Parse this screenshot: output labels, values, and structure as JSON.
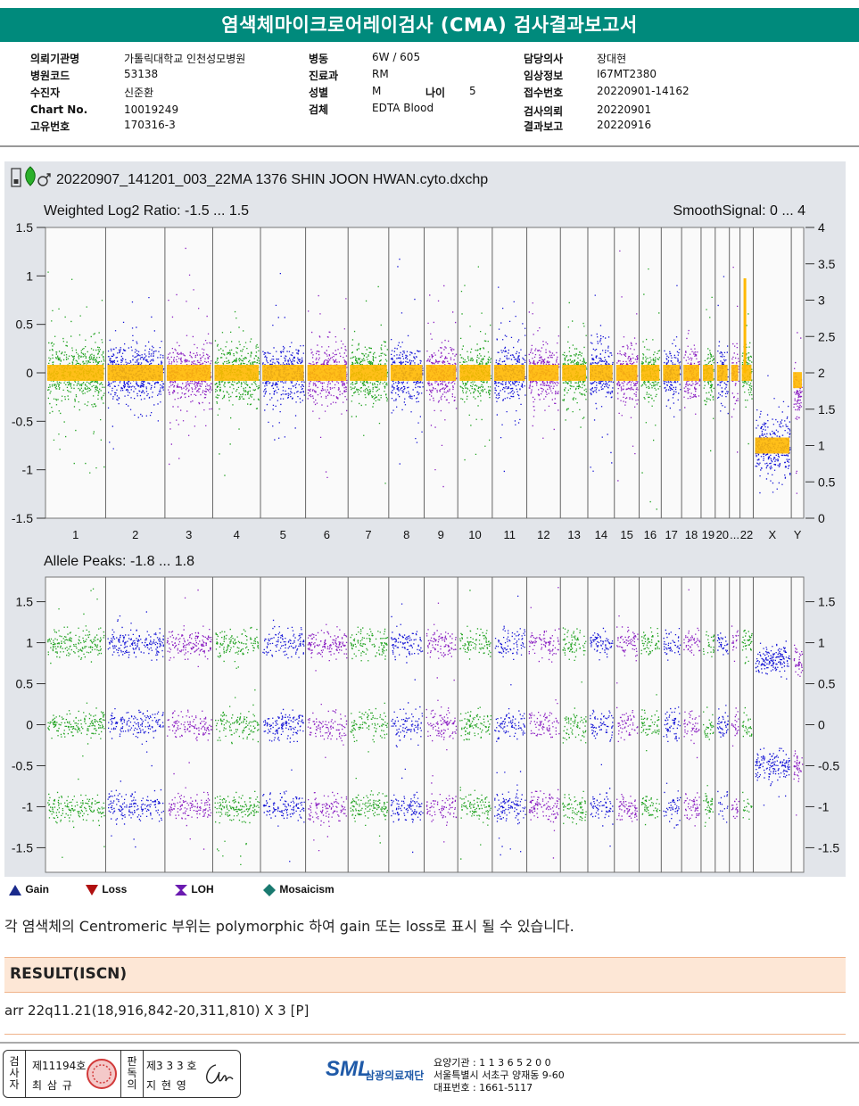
{
  "header": {
    "title": "염색체마이크로어레이검사 (CMA) 검사결과보고서"
  },
  "patient_info": {
    "col1": [
      {
        "label": "의뢰기관명",
        "value": "가톨릭대학교 인천성모병원"
      },
      {
        "label": "병원코드",
        "value": "53138"
      },
      {
        "label": "수진자",
        "value": "신준환"
      },
      {
        "label": "Chart No.",
        "value": "10019249"
      },
      {
        "label": "고유번호",
        "value": "170316-3"
      }
    ],
    "col2": [
      {
        "label": "병동",
        "value": "6W / 605"
      },
      {
        "label": "진료과",
        "value": "RM"
      },
      {
        "label": "성별",
        "value": "M"
      },
      {
        "label": "검체",
        "value": "EDTA Blood"
      }
    ],
    "age": {
      "label": "나이",
      "value": "5"
    },
    "col3": [
      {
        "label": "담당의사",
        "value": "장대현"
      },
      {
        "label": "임상정보",
        "value": "I67MT2380"
      },
      {
        "label": "접수번호",
        "value": "20220901-14162"
      },
      {
        "label": "검사의뢰",
        "value": "20220901"
      },
      {
        "label": "결과보고",
        "value": "20220916"
      }
    ]
  },
  "chart_data": {
    "type": "scatter",
    "filename": "20220907_141201_003_22MA 1376 SHIN JOON HWAN.cyto.dxchp",
    "chromosomes": [
      "1",
      "2",
      "3",
      "4",
      "5",
      "6",
      "7",
      "8",
      "9",
      "10",
      "11",
      "12",
      "13",
      "14",
      "15",
      "16",
      "17",
      "18",
      "19",
      "20",
      "...",
      "22",
      "X",
      "Y"
    ],
    "series_colors": [
      "#1fa21f",
      "#1515d6",
      "#8a1ec2"
    ],
    "smooth_color": "#ffb800",
    "top_panel": {
      "title": "Weighted Log2 Ratio: -1.5 ... 1.5",
      "right_title": "SmoothSignal: 0 ... 4",
      "ylim": [
        -1.5,
        1.5
      ],
      "yticks": [
        "1.5",
        "1",
        "0.5",
        "0",
        "-0.5",
        "-1",
        "-1.5"
      ],
      "yticks_right": [
        "4",
        "3.5",
        "3",
        "2.5",
        "2",
        "1.5",
        "1",
        "0.5",
        "0"
      ],
      "autosome_log2": 0,
      "x_log2": -0.75,
      "y_log2": -0.2
    },
    "bottom_panel": {
      "title": "Allele Peaks: -1.8 ... 1.8",
      "ylim": [
        -1.8,
        1.8
      ],
      "yticks": [
        "1.5",
        "1",
        "0.5",
        "0",
        "-0.5",
        "-1",
        "-1.5"
      ],
      "yticks_right": [
        "1.5",
        "1",
        "0.5",
        "0",
        "-0.5",
        "-1",
        "-1.5"
      ],
      "peaks": [
        1.0,
        0,
        -1.0
      ]
    }
  },
  "legend": [
    {
      "label": "Gain",
      "color": "#1a2a8c",
      "icon": "triangle-up-icon"
    },
    {
      "label": "Loss",
      "color": "#b01010",
      "icon": "triangle-down-icon"
    },
    {
      "label": "LOH",
      "color": "#6a1ab0",
      "icon": "loh-icon"
    },
    {
      "label": "Mosaicism",
      "color": "#1a7a70",
      "icon": "diamond-icon"
    }
  ],
  "note": "각 염색체의 Centromeric 부위는 polymorphic 하여 gain 또는 loss로 표시 될 수 있습니다.",
  "result": {
    "title": "RESULT(ISCN)",
    "value": "arr 22q11.21(18,916,842-20,311,810) X 3 [P]"
  },
  "footer": {
    "signer1_role": "검사자",
    "signer1_no": "제11194호",
    "signer1_name": "최 삼 규",
    "signer2_role": "판독의",
    "signer2_no": "제3 3 3 호",
    "signer2_name": "지 현 영",
    "org_logo": "SML",
    "org_name": "삼광의료재단",
    "line1": "요양기관 : 1 1 3 6 5 2 0 0",
    "line2": "서울특별시 서초구 양재동 9-60",
    "line3": "대표번호 : 1661-5117"
  }
}
